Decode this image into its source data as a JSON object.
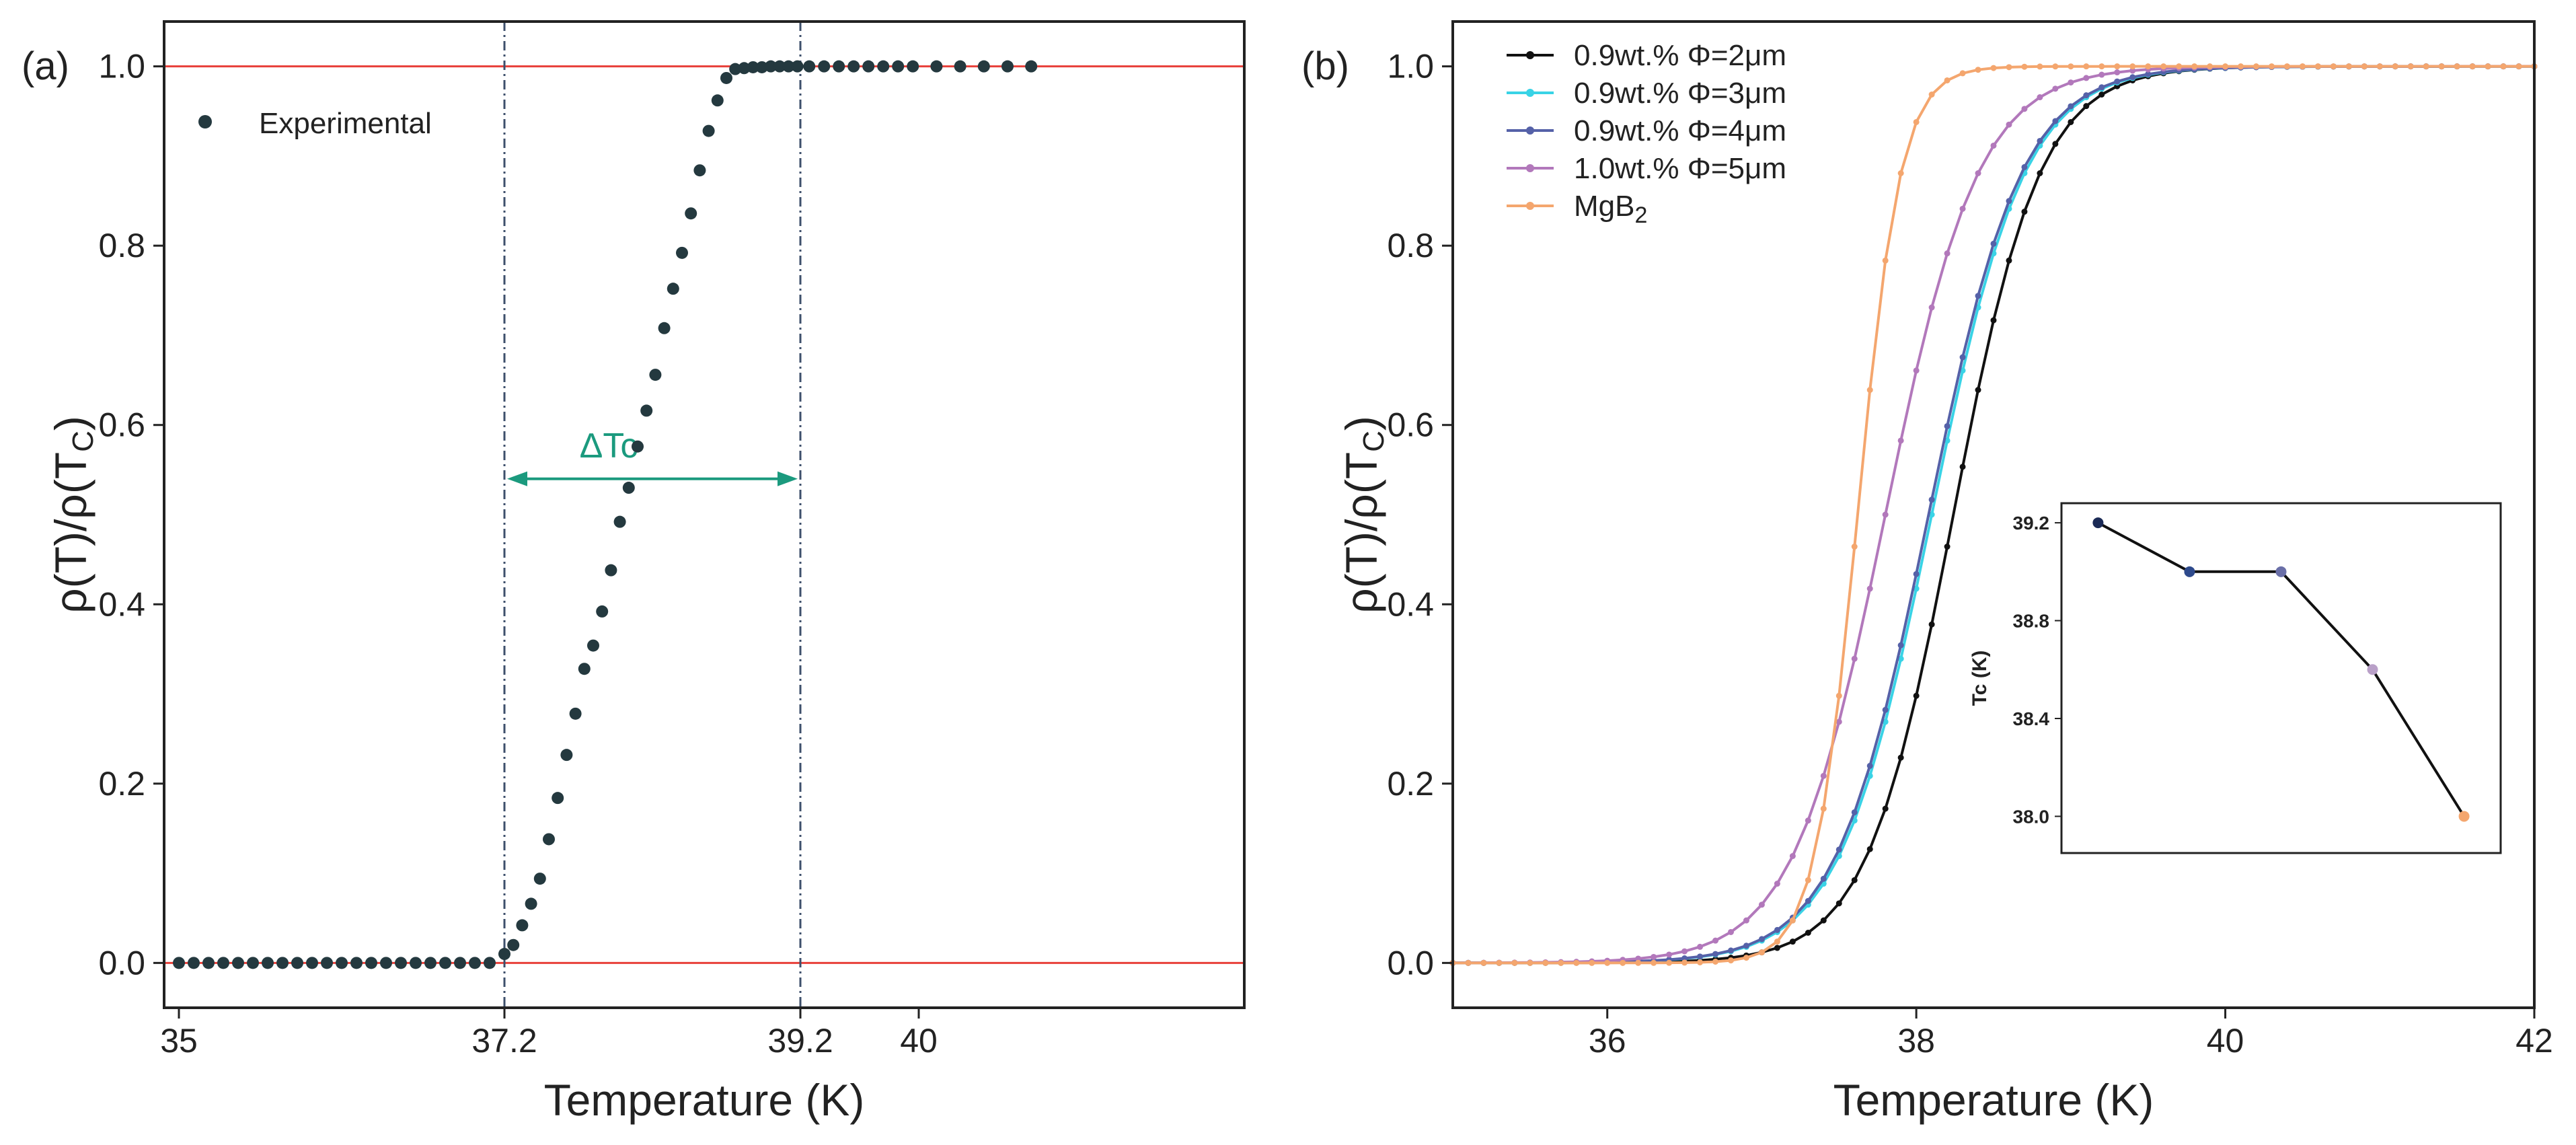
{
  "chart_data": [
    {
      "panel": "(a)",
      "type": "scatter",
      "xlabel": "Temperature (K)",
      "ylabel_parts": [
        "ρ(T)/ρ(T",
        "C",
        ")"
      ],
      "xlim": [
        34.9,
        42.2
      ],
      "ylim": [
        -0.05,
        1.05
      ],
      "xticks": [
        35,
        37.2,
        39.2,
        40
      ],
      "yticks": [
        0.0,
        0.2,
        0.4,
        0.6,
        0.8,
        1.0
      ],
      "ytick_labels": [
        "0.0",
        "0.2",
        "0.4",
        "0.6",
        "0.8",
        "1.0"
      ],
      "hlines": [
        0.0,
        1.0
      ],
      "vlines": [
        37.2,
        39.2
      ],
      "annotation": {
        "text": "ΔTc",
        "from": 37.2,
        "to": 39.2,
        "y": 0.54,
        "color": "#1b9a7e"
      },
      "series": [
        {
          "name": "Experimental",
          "color": "#24393f",
          "x": [
            35.0,
            35.1,
            35.2,
            35.3,
            35.4,
            35.5,
            35.6,
            35.7,
            35.8,
            35.9,
            36.0,
            36.1,
            36.2,
            36.3,
            36.4,
            36.5,
            36.6,
            36.7,
            36.8,
            36.9,
            37.0,
            37.1,
            37.2,
            37.26,
            37.32,
            37.38,
            37.44,
            37.5,
            37.56,
            37.62,
            37.68,
            37.74,
            37.8,
            37.86,
            37.92,
            37.98,
            38.04,
            38.1,
            38.16,
            38.22,
            38.28,
            38.34,
            38.4,
            38.46,
            38.52,
            38.58,
            38.64,
            38.7,
            38.76,
            38.82,
            38.88,
            38.94,
            39.0,
            39.06,
            39.12,
            39.18,
            39.26,
            39.36,
            39.46,
            39.56,
            39.66,
            39.76,
            39.86,
            39.96,
            40.12,
            40.28,
            40.44,
            40.6,
            40.76
          ],
          "y": [
            0,
            0,
            0,
            0,
            0,
            0,
            0,
            0,
            0,
            0,
            0,
            0,
            0,
            0,
            0,
            0,
            0,
            0,
            0,
            0,
            0,
            0,
            0.01,
            0.02,
            0.042,
            0.066,
            0.094,
            0.138,
            0.184,
            0.232,
            0.278,
            0.328,
            0.354,
            0.392,
            0.438,
            0.492,
            0.53,
            0.576,
            0.616,
            0.656,
            0.708,
            0.752,
            0.792,
            0.836,
            0.884,
            0.928,
            0.962,
            0.987,
            0.997,
            0.998,
            0.999,
            0.999,
            1.0,
            1.0,
            1.0,
            1.0,
            1.0,
            1.0,
            1.0,
            1.0,
            1.0,
            1.0,
            1.0,
            1.0,
            1.0,
            1.0,
            1.0,
            1.0,
            1.0
          ]
        }
      ]
    },
    {
      "panel": "(b)",
      "type": "line",
      "xlabel": "Temperature (K)",
      "ylabel_parts": [
        "ρ(T)/ρ(T",
        "C",
        ")"
      ],
      "xlim": [
        35,
        42
      ],
      "ylim": [
        -0.05,
        1.05
      ],
      "xticks": [
        36,
        38,
        40,
        42
      ],
      "yticks": [
        0.0,
        0.2,
        0.4,
        0.6,
        0.8,
        1.0
      ],
      "ytick_labels": [
        "0.0",
        "0.2",
        "0.4",
        "0.6",
        "0.8",
        "1.0"
      ],
      "x_start": 35.0,
      "x_step": 0.1,
      "x_end": 42.0,
      "series": [
        {
          "name": "0.9wt.% Φ=2μm",
          "color": "#111111",
          "center": 38.24,
          "width": 0.28
        },
        {
          "name": "0.9wt.% Φ=3μm",
          "color": "#39d3e6",
          "center": 38.1,
          "width": 0.3
        },
        {
          "name": "0.9wt.% Φ=4μm",
          "color": "#5561a8",
          "center": 38.08,
          "width": 0.3
        },
        {
          "name": "1.0wt.% Φ=5μm",
          "color": "#b278bb",
          "center": 37.8,
          "width": 0.3
        },
        {
          "name": "MgB2",
          "color": "#f4a66e",
          "center": 37.62,
          "width": 0.14
        }
      ],
      "legend_labels": [
        {
          "text": "0.9wt.% Φ=2μm",
          "sub": ""
        },
        {
          "text": "0.9wt.% Φ=3μm",
          "sub": ""
        },
        {
          "text": "0.9wt.% Φ=4μm",
          "sub": ""
        },
        {
          "text": "1.0wt.% Φ=5μm",
          "sub": ""
        },
        {
          "text": "MgB",
          "sub": "2"
        }
      ],
      "inset": {
        "type": "line",
        "ylabel": "Tc (K)",
        "ylim": [
          37.85,
          39.28
        ],
        "yticks": [
          38.0,
          38.4,
          38.8,
          39.2
        ],
        "ytick_labels": [
          "38.0",
          "38.4",
          "38.8",
          "39.2"
        ],
        "xlim": [
          0.6,
          5.4
        ],
        "x": [
          1,
          2,
          3,
          4,
          5
        ],
        "values": [
          39.2,
          39.0,
          39.0,
          38.6,
          38.0
        ],
        "point_colors": [
          "#1b2a56",
          "#2e4a8c",
          "#6a6fa8",
          "#b9a0c8",
          "#f4a66e"
        ]
      }
    }
  ]
}
